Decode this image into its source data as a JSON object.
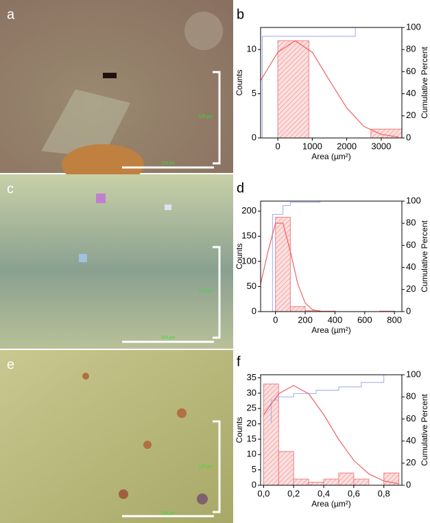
{
  "images": [
    {
      "label": "a",
      "scale": "100 µm"
    },
    {
      "label": "c",
      "scale": "100 µm"
    },
    {
      "label": "e",
      "scale": "100 µm"
    }
  ],
  "chart_data": [
    {
      "type": "histogram",
      "label": "b",
      "xlabel": "Area (µm²)",
      "ylabel": "Counts",
      "y2label": "Cumulative Percent",
      "bins": [
        0,
        900,
        1800,
        2700,
        3600
      ],
      "values": [
        11,
        0,
        0,
        1
      ],
      "color": "#f08080",
      "xlim": [
        -500,
        3600
      ],
      "xticks": [
        0,
        1000,
        2000,
        3000
      ],
      "ylim": [
        0,
        12.5
      ],
      "yticks": [
        0,
        5,
        10
      ],
      "y2lim": [
        0,
        100
      ],
      "y2ticks": [
        0,
        20,
        40,
        60,
        80,
        100
      ],
      "cumulative": {
        "axis": "y2",
        "color": "#a0a8f0",
        "x": [
          -450,
          -450,
          2250,
          2250,
          3600
        ],
        "values": [
          0,
          92,
          92,
          100,
          100
        ]
      },
      "fit": {
        "color": "#f06060",
        "x": [
          -500,
          0,
          500,
          1000,
          1500,
          2000,
          2500,
          3000,
          3500
        ],
        "values": [
          6.5,
          9.7,
          11,
          9.7,
          6.5,
          3.4,
          1.3,
          0.4,
          0.1
        ]
      }
    },
    {
      "type": "histogram",
      "label": "d",
      "xlabel": "Area (µm²)",
      "ylabel": "Counts",
      "y2label": "Cumulative Percent",
      "bins": [
        0,
        100,
        200,
        300,
        400,
        500,
        600,
        700,
        800
      ],
      "values": [
        188,
        10,
        2,
        1,
        0,
        0,
        0,
        1
      ],
      "color": "#f08080",
      "xlim": [
        -100,
        850
      ],
      "xticks": [
        0,
        200,
        400,
        600,
        800
      ],
      "ylim": [
        0,
        220
      ],
      "yticks": [
        0,
        50,
        100,
        150,
        200
      ],
      "y2lim": [
        0,
        100
      ],
      "y2ticks": [
        0,
        20,
        40,
        60,
        80,
        100
      ],
      "cumulative": {
        "axis": "y2",
        "color": "#a0a8f0",
        "x": [
          -20,
          -20,
          50,
          50,
          100,
          100,
          300,
          300,
          850
        ],
        "values": [
          0,
          88,
          88,
          96,
          96,
          99,
          99,
          100,
          100
        ]
      },
      "fit": {
        "color": "#f06060",
        "x": [
          -100,
          -50,
          0,
          50,
          100,
          150,
          200,
          250,
          300
        ],
        "values": [
          55,
          120,
          176,
          176,
          120,
          55,
          17,
          3.6,
          0.5
        ]
      }
    },
    {
      "type": "histogram",
      "label": "f",
      "xlabel": "Area (µm²)",
      "ylabel": "Counts",
      "y2label": "Cumulative Percent",
      "bins": [
        0,
        0.1,
        0.2,
        0.3,
        0.4,
        0.5,
        0.6,
        0.7,
        0.8,
        0.9
      ],
      "values": [
        33,
        11,
        2,
        1,
        2,
        4,
        2,
        0,
        4
      ],
      "color": "#f08080",
      "xlim": [
        -0.02,
        0.92
      ],
      "xticks": [
        {
          "value": 0,
          "label": "0,0"
        },
        {
          "value": 0.2,
          "label": "0,2"
        },
        {
          "value": 0.4,
          "label": "0,4"
        },
        {
          "value": 0.6,
          "label": "0,6"
        },
        {
          "value": 0.8,
          "label": "0,8"
        }
      ],
      "ylim": [
        0,
        36
      ],
      "yticks": [
        0,
        5,
        10,
        15,
        20,
        25,
        30,
        35
      ],
      "y2lim": [
        0,
        100
      ],
      "y2ticks": [
        0,
        20,
        40,
        60,
        80,
        100
      ],
      "cumulative": {
        "axis": "y2",
        "color": "#a0a8f0",
        "x": [
          0.05,
          0.05,
          0.1,
          0.1,
          0.2,
          0.2,
          0.35,
          0.35,
          0.5,
          0.5,
          0.65,
          0.65,
          0.8,
          0.8,
          0.92
        ],
        "values": [
          57,
          77,
          77,
          80,
          80,
          83,
          83,
          86,
          86,
          89,
          89,
          93,
          93,
          100,
          100
        ]
      },
      "fit": {
        "color": "#f06060",
        "x": [
          0,
          0.1,
          0.2,
          0.3,
          0.4,
          0.5,
          0.6,
          0.7,
          0.8,
          0.9
        ],
        "values": [
          23,
          29.8,
          32.5,
          29.8,
          23,
          14.9,
          8.1,
          3.7,
          1.4,
          0.47
        ]
      }
    }
  ]
}
